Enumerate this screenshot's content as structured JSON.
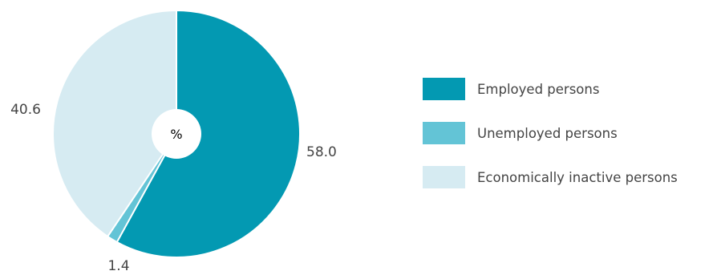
{
  "chart_data": {
    "type": "pie",
    "unit_label": "%",
    "slices": [
      {
        "name": "Employed persons",
        "value": 58.0,
        "label": "58.0",
        "color": "#0399b2"
      },
      {
        "name": "Unemployed persons",
        "value": 1.4,
        "label": "1.4",
        "color": "#63c4d6"
      },
      {
        "name": "Economically inactive persons",
        "value": 40.6,
        "label": "40.6",
        "color": "#d6ebf2"
      }
    ],
    "legend": {
      "placement": "right",
      "items": [
        {
          "label": "Employed persons",
          "color": "#0399b2"
        },
        {
          "label": "Unemployed persons",
          "color": "#63c4d6"
        },
        {
          "label": "Economically inactive persons",
          "color": "#d6ebf2"
        }
      ]
    }
  }
}
